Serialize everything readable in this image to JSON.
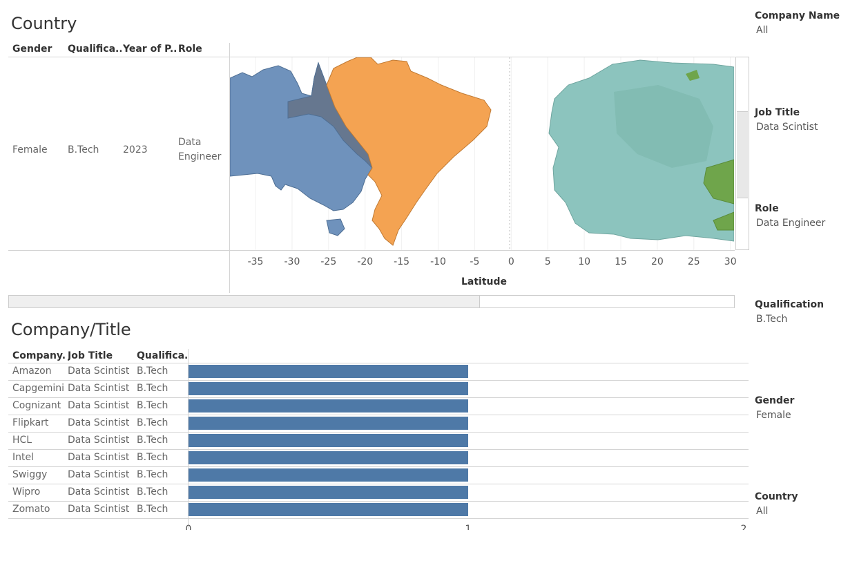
{
  "sheet1": {
    "title": "Country",
    "headers": [
      "Gender",
      "Qualifica..",
      "Year of P..",
      "Role"
    ],
    "row": {
      "gender": "Female",
      "qualification": "B.Tech",
      "year": "2023",
      "role_line1": "Data",
      "role_line2": "Engineer"
    },
    "axis_label": "Latitude"
  },
  "sheet2": {
    "title": "Company/Title",
    "headers": [
      "Company..",
      "Job Title",
      "Qualifica.."
    ]
  },
  "filters": [
    {
      "title": "Company Name",
      "value": "All"
    },
    {
      "title": "Job Title",
      "value": "Data Scintist"
    },
    {
      "title": "Role",
      "value": "Data Engineer"
    },
    {
      "title": "Qualification",
      "value": "B.Tech"
    },
    {
      "title": "Gender",
      "value": "Female"
    },
    {
      "title": "Country",
      "value": "All"
    }
  ],
  "colors": {
    "australia": "#5f84b3",
    "brazil": "#f49c45",
    "europe": "#84bfb9",
    "green": "#6fa54b",
    "bar": "#4e79a7"
  },
  "chart_data": [
    {
      "type": "map",
      "xlabel": "Latitude",
      "x_ticks": [
        -35,
        -30,
        -25,
        -20,
        -15,
        -10,
        -5,
        0,
        5,
        10,
        15,
        20,
        25,
        30
      ],
      "xlim": [
        -38.5,
        30.5
      ]
    },
    {
      "type": "bar",
      "orientation": "horizontal",
      "categories": [
        "Amazon",
        "Capgemini",
        "Cognizant",
        "Flipkart",
        "HCL",
        "Intel",
        "Swiggy",
        "Wipro",
        "Zomato"
      ],
      "job_title": "Data Scintist",
      "qualification": "B.Tech",
      "values": [
        1,
        1,
        1,
        1,
        1,
        1,
        1,
        1,
        1
      ],
      "x_ticks": [
        "0",
        "1",
        "2"
      ],
      "xlim": [
        0,
        2
      ]
    }
  ]
}
